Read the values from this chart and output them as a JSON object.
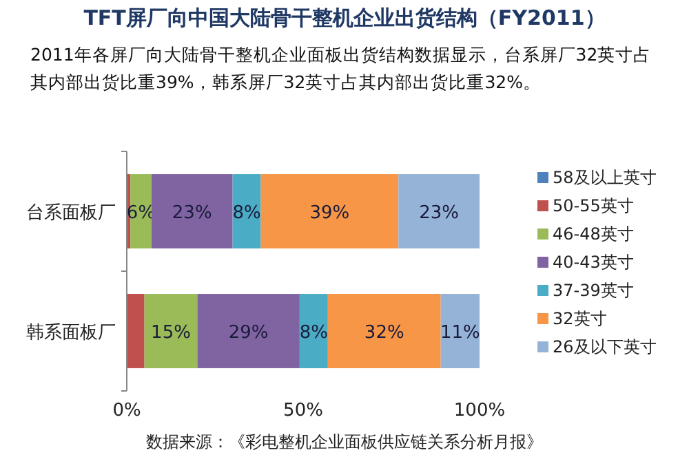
{
  "chart_data": {
    "type": "bar",
    "orientation": "horizontal",
    "stacked": true,
    "title": "TFT屏厂向中国大陆骨干整机企业出货结构（FY2011）",
    "subtitle": "2011年各屏厂向大陆骨干整机企业面板出货结构数据显示，台系屏厂32英寸占其内部出货比重39%，韩系屏厂32英寸占其内部出货比重32%。",
    "categories": [
      "台系面板厂",
      "韩系面板厂"
    ],
    "series": [
      {
        "name": "58及以上英寸",
        "color": "#4f81bd",
        "values": [
          0,
          0
        ],
        "value_labels": [
          null,
          null
        ]
      },
      {
        "name": "50-55英寸",
        "color": "#c0504d",
        "values": [
          1,
          5
        ],
        "value_labels": [
          null,
          null
        ]
      },
      {
        "name": "46-48英寸",
        "color": "#9bbb59",
        "values": [
          6,
          15
        ],
        "value_labels": [
          "6%",
          "15%"
        ]
      },
      {
        "name": "40-43英寸",
        "color": "#8064a2",
        "values": [
          23,
          29
        ],
        "value_labels": [
          "23%",
          "29%"
        ]
      },
      {
        "name": "37-39英寸",
        "color": "#4bacc6",
        "values": [
          8,
          8
        ],
        "value_labels": [
          "8%",
          "8%"
        ]
      },
      {
        "name": "32英寸",
        "color": "#f79646",
        "values": [
          39,
          32
        ],
        "value_labels": [
          "39%",
          "32%"
        ]
      },
      {
        "name": "26及以下英寸",
        "color": "#95b3d7",
        "values": [
          23,
          11
        ],
        "value_labels": [
          "23%",
          "11%"
        ]
      }
    ],
    "xlim": [
      0,
      100
    ],
    "xticks": [
      {
        "value": 0,
        "label": "0%"
      },
      {
        "value": 50,
        "label": "50%"
      },
      {
        "value": 100,
        "label": "100%"
      }
    ],
    "legend": "right",
    "annotations": [
      "数据来源：《彩电整机企业面板供应链关系分析月报》"
    ]
  }
}
